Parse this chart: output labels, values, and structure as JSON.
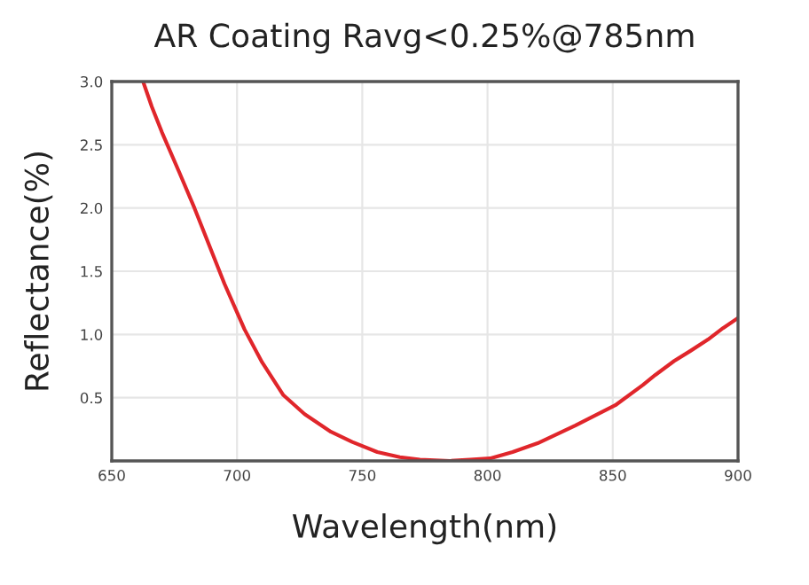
{
  "chart_data": {
    "type": "line",
    "title": "AR Coating Ravg<0.25%@785nm",
    "xlabel": "Wavelength(nm)",
    "ylabel": "Reflectance(%)",
    "x": [
      662.5,
      666,
      670,
      677,
      683,
      689,
      695,
      703,
      710,
      718.5,
      727,
      737.5,
      746,
      756,
      765,
      773,
      785,
      793,
      801,
      810,
      820,
      835,
      843,
      851,
      862,
      867,
      874.5,
      881,
      888,
      894,
      900
    ],
    "series": [
      {
        "color": "#e0262b",
        "values": [
          3.0,
          2.8,
          2.6,
          2.28,
          2.0,
          1.7,
          1.4,
          1.04,
          0.78,
          0.52,
          0.37,
          0.23,
          0.15,
          0.07,
          0.03,
          0.01,
          0.0,
          0.01,
          0.02,
          0.07,
          0.14,
          0.28,
          0.36,
          0.44,
          0.6,
          0.68,
          0.79,
          0.87,
          0.96,
          1.05,
          1.13
        ]
      }
    ],
    "xlim": [
      650,
      900
    ],
    "ylim": [
      0,
      3
    ],
    "xticks": [
      650,
      700,
      750,
      800,
      850,
      900
    ],
    "yticks": [
      {
        "value": 0,
        "label": null
      },
      0.5,
      {
        "value": 1,
        "label": "1.0"
      },
      1.5,
      {
        "value": 2,
        "label": "2.0"
      },
      2.5,
      {
        "value": 3,
        "label": "3.0"
      }
    ],
    "grid": true,
    "marker": "none",
    "line_style": "solid",
    "legend": false
  }
}
